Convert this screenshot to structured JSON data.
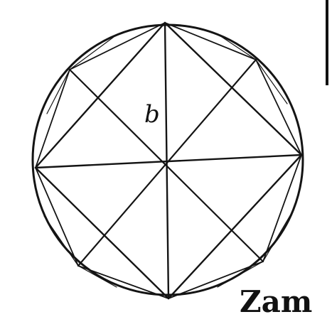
{
  "figure": {
    "label": "b",
    "catchword": "Zam"
  },
  "colors": {
    "ink": "#141414",
    "paper": "#ffffff"
  }
}
